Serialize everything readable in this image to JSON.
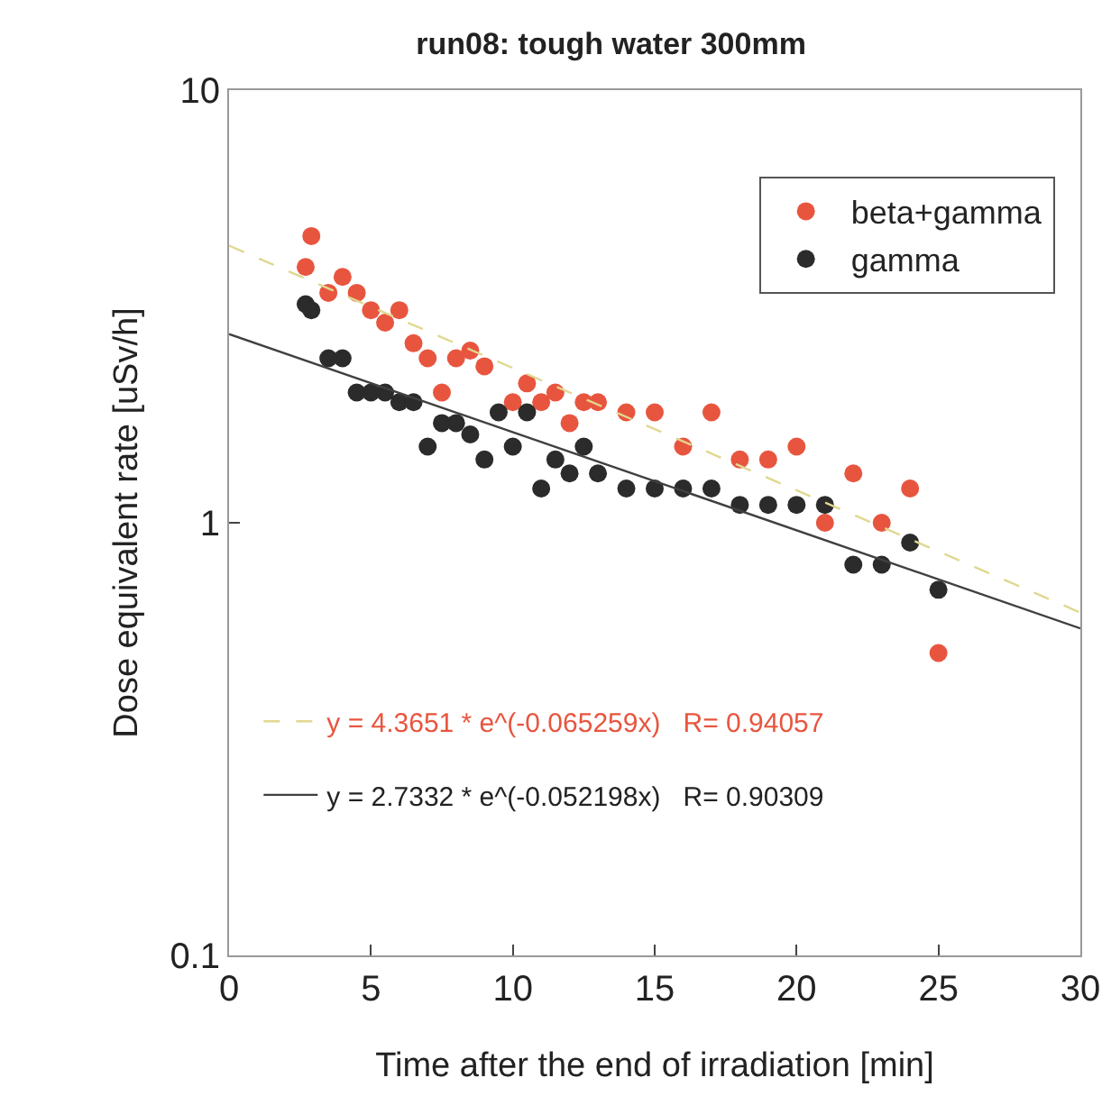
{
  "chart_data": {
    "type": "scatter",
    "title": "run08: tough water 300mm",
    "xlabel": "Time after the end of irradiation [min]",
    "ylabel": "Dose equivalent rate [uSv/h]",
    "xlim": [
      0,
      30
    ],
    "xticks": [
      0,
      5,
      10,
      15,
      20,
      25,
      30
    ],
    "ylim": [
      0.1,
      10
    ],
    "yticks": [
      0.1,
      1,
      10
    ],
    "log": "y",
    "grid": false,
    "legend": "top right",
    "series": [
      {
        "name": "beta+gamma",
        "color": "#e8553f",
        "marker": "circle",
        "x": [
          2.7,
          2.9,
          3.5,
          4,
          4.5,
          5,
          5.5,
          6,
          6.5,
          7,
          7.5,
          8,
          8.5,
          9,
          10,
          10.5,
          11,
          11.5,
          12,
          12.5,
          13,
          14,
          15,
          16,
          17,
          18,
          19,
          20,
          21,
          22,
          23,
          24,
          25
        ],
        "values": [
          3.9,
          4.6,
          3.4,
          3.7,
          3.4,
          3.1,
          2.9,
          3.1,
          2.6,
          2.4,
          2.0,
          2.4,
          2.5,
          2.3,
          1.9,
          2.1,
          1.9,
          2.0,
          1.7,
          1.9,
          1.9,
          1.8,
          1.8,
          1.5,
          1.8,
          1.4,
          1.4,
          1.5,
          1.0,
          1.3,
          1.0,
          1.2,
          0.5
        ]
      },
      {
        "name": "gamma",
        "color": "#2b2b2b",
        "marker": "circle",
        "x": [
          2.7,
          2.9,
          3.5,
          4,
          4.5,
          5,
          5.5,
          6,
          6.5,
          7,
          7.5,
          8,
          8.5,
          9,
          9.5,
          10,
          10.5,
          11,
          11.5,
          12,
          12.5,
          13,
          14,
          15,
          16,
          17,
          18,
          19,
          20,
          21,
          22,
          23,
          24,
          25
        ],
        "values": [
          3.2,
          3.1,
          2.4,
          2.4,
          2.0,
          2.0,
          2.0,
          1.9,
          1.9,
          1.5,
          1.7,
          1.7,
          1.6,
          1.4,
          1.8,
          1.5,
          1.8,
          1.2,
          1.4,
          1.3,
          1.5,
          1.3,
          1.2,
          1.2,
          1.2,
          1.2,
          1.1,
          1.1,
          1.1,
          1.1,
          0.8,
          0.8,
          0.9,
          0.7
        ]
      },
      {
        "name": "y = 4.3651 * e^(-0.065259x)   R= 0.94057",
        "color": "#e0d890",
        "type": "line",
        "marker": "none",
        "line_style": "dashed",
        "x": [
          0,
          30
        ],
        "values": [
          4.37,
          0.62
        ]
      },
      {
        "name": "y = 2.7332 * e^(-0.052198x)   R= 0.90309",
        "color": "#404040",
        "type": "line",
        "marker": "none",
        "line_style": "solid",
        "x": [
          0,
          30
        ],
        "values": [
          2.73,
          0.57
        ]
      }
    ]
  }
}
